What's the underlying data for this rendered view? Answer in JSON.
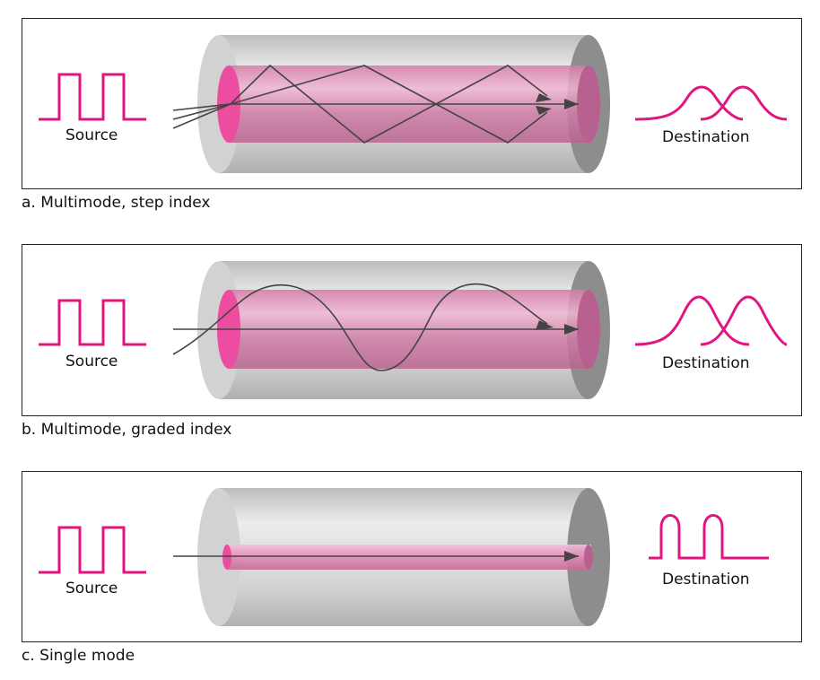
{
  "panels": [
    {
      "caption": "a. Multimode, step index",
      "source_label": "Source",
      "destination_label": "Destination"
    },
    {
      "caption": "b. Multimode, graded index",
      "source_label": "Source",
      "destination_label": "Destination"
    },
    {
      "caption": "c. Single mode",
      "source_label": "Source",
      "destination_label": "Destination"
    }
  ],
  "colors": {
    "signal": "#e0157f",
    "core": "#e58bb8",
    "cladding": "#c9c9c9",
    "ray": "#444444",
    "border": "#222222"
  }
}
